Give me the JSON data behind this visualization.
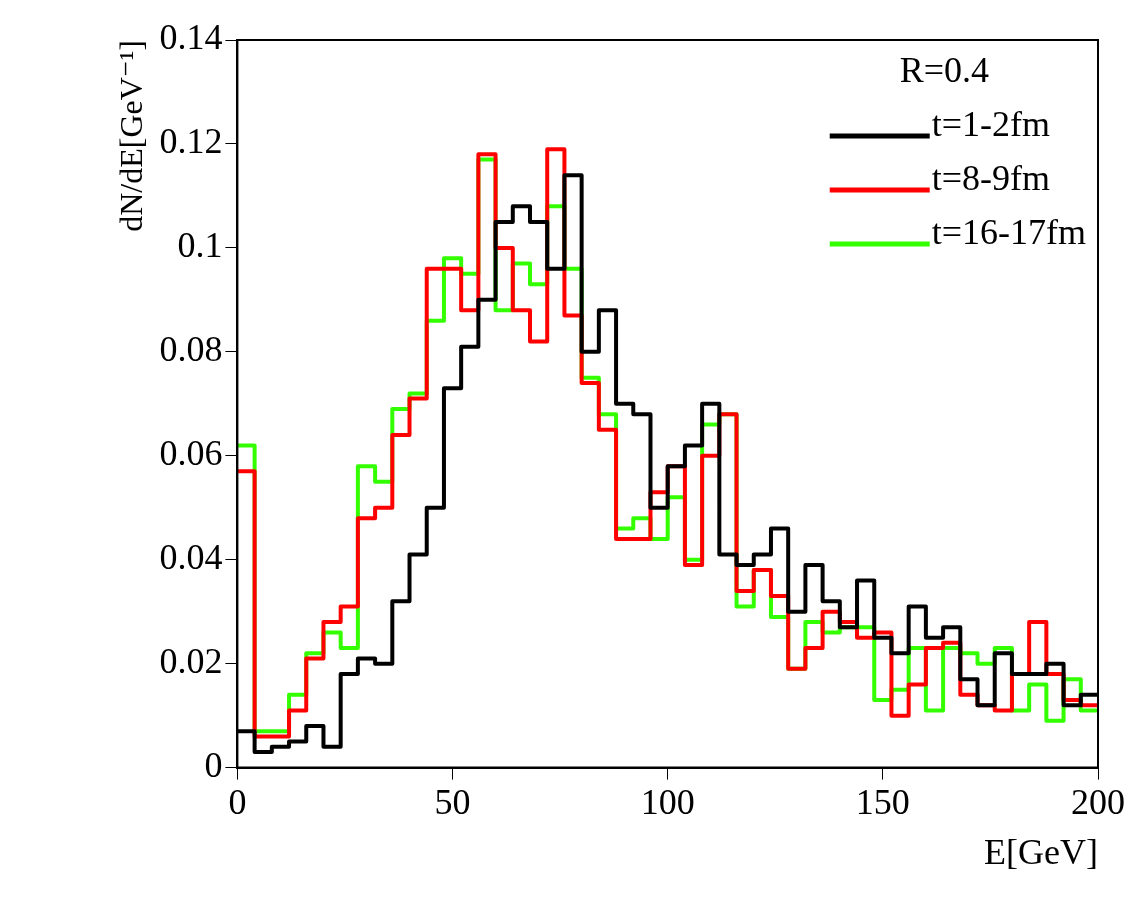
{
  "chart_data": {
    "type": "histogram",
    "xlabel": "E[GeV]",
    "ylabel": "dN/dE[GeV⁻¹]",
    "legend_title": "R=0.4",
    "bins": [
      0,
      4,
      8,
      12,
      16,
      20,
      24,
      28,
      32,
      36,
      40,
      44,
      48,
      52,
      56,
      60,
      64,
      68,
      72,
      76,
      80,
      84,
      88,
      92,
      96,
      100,
      104,
      108,
      112,
      116,
      120,
      124,
      128,
      132,
      136,
      140,
      144,
      148,
      152,
      156,
      160,
      164,
      168,
      172,
      176,
      180,
      184,
      188,
      192,
      196,
      200
    ],
    "series": [
      {
        "name": "t=1-2fm",
        "color": "#000000",
        "values": [
          0.007,
          0.003,
          0.004,
          0.005,
          0.008,
          0.004,
          0.018,
          0.021,
          0.02,
          0.032,
          0.041,
          0.05,
          0.073,
          0.081,
          0.09,
          0.105,
          0.108,
          0.105,
          0.096,
          0.114,
          0.08,
          0.088,
          0.07,
          0.068,
          0.05,
          0.058,
          0.062,
          0.07,
          0.041,
          0.039,
          0.041,
          0.046,
          0.03,
          0.039,
          0.032,
          0.027,
          0.036,
          0.025,
          0.022,
          0.031,
          0.025,
          0.027,
          0.017,
          0.012,
          0.022,
          0.018,
          0.018,
          0.02,
          0.012,
          0.014
        ]
      },
      {
        "name": "t=8-9fm",
        "color": "#ff0000",
        "values": [
          0.057,
          0.006,
          0.006,
          0.011,
          0.021,
          0.028,
          0.031,
          0.048,
          0.05,
          0.064,
          0.071,
          0.096,
          0.096,
          0.088,
          0.118,
          0.1,
          0.088,
          0.082,
          0.119,
          0.087,
          0.074,
          0.065,
          0.044,
          0.044,
          0.053,
          0.058,
          0.039,
          0.06,
          0.068,
          0.034,
          0.038,
          0.033,
          0.019,
          0.023,
          0.03,
          0.028,
          0.025,
          0.026,
          0.01,
          0.016,
          0.023,
          0.024,
          0.014,
          0.012,
          0.011,
          0.018,
          0.028,
          0.018,
          0.013,
          0.012
        ]
      },
      {
        "name": "t=16-17fm",
        "color": "#33ff00",
        "values": [
          0.062,
          0.007,
          0.007,
          0.014,
          0.022,
          0.026,
          0.023,
          0.058,
          0.055,
          0.069,
          0.072,
          0.086,
          0.098,
          0.095,
          0.117,
          0.088,
          0.097,
          0.093,
          0.108,
          0.096,
          0.075,
          0.068,
          0.046,
          0.048,
          0.044,
          0.052,
          0.04,
          0.066,
          0.068,
          0.031,
          0.038,
          0.029,
          0.019,
          0.028,
          0.026,
          0.027,
          0.027,
          0.013,
          0.015,
          0.023,
          0.011,
          0.023,
          0.022,
          0.02,
          0.023,
          0.011,
          0.016,
          0.009,
          0.017,
          0.011
        ]
      }
    ],
    "xlim": [
      0,
      200
    ],
    "xticks": [
      0,
      50,
      100,
      150,
      200
    ],
    "ylim": [
      0,
      0.14
    ],
    "yticks": [
      0,
      0.02,
      0.04,
      0.06,
      0.08,
      0.1,
      0.12,
      0.14
    ],
    "legend": "top right",
    "line_style": "solid",
    "marker": "none"
  }
}
